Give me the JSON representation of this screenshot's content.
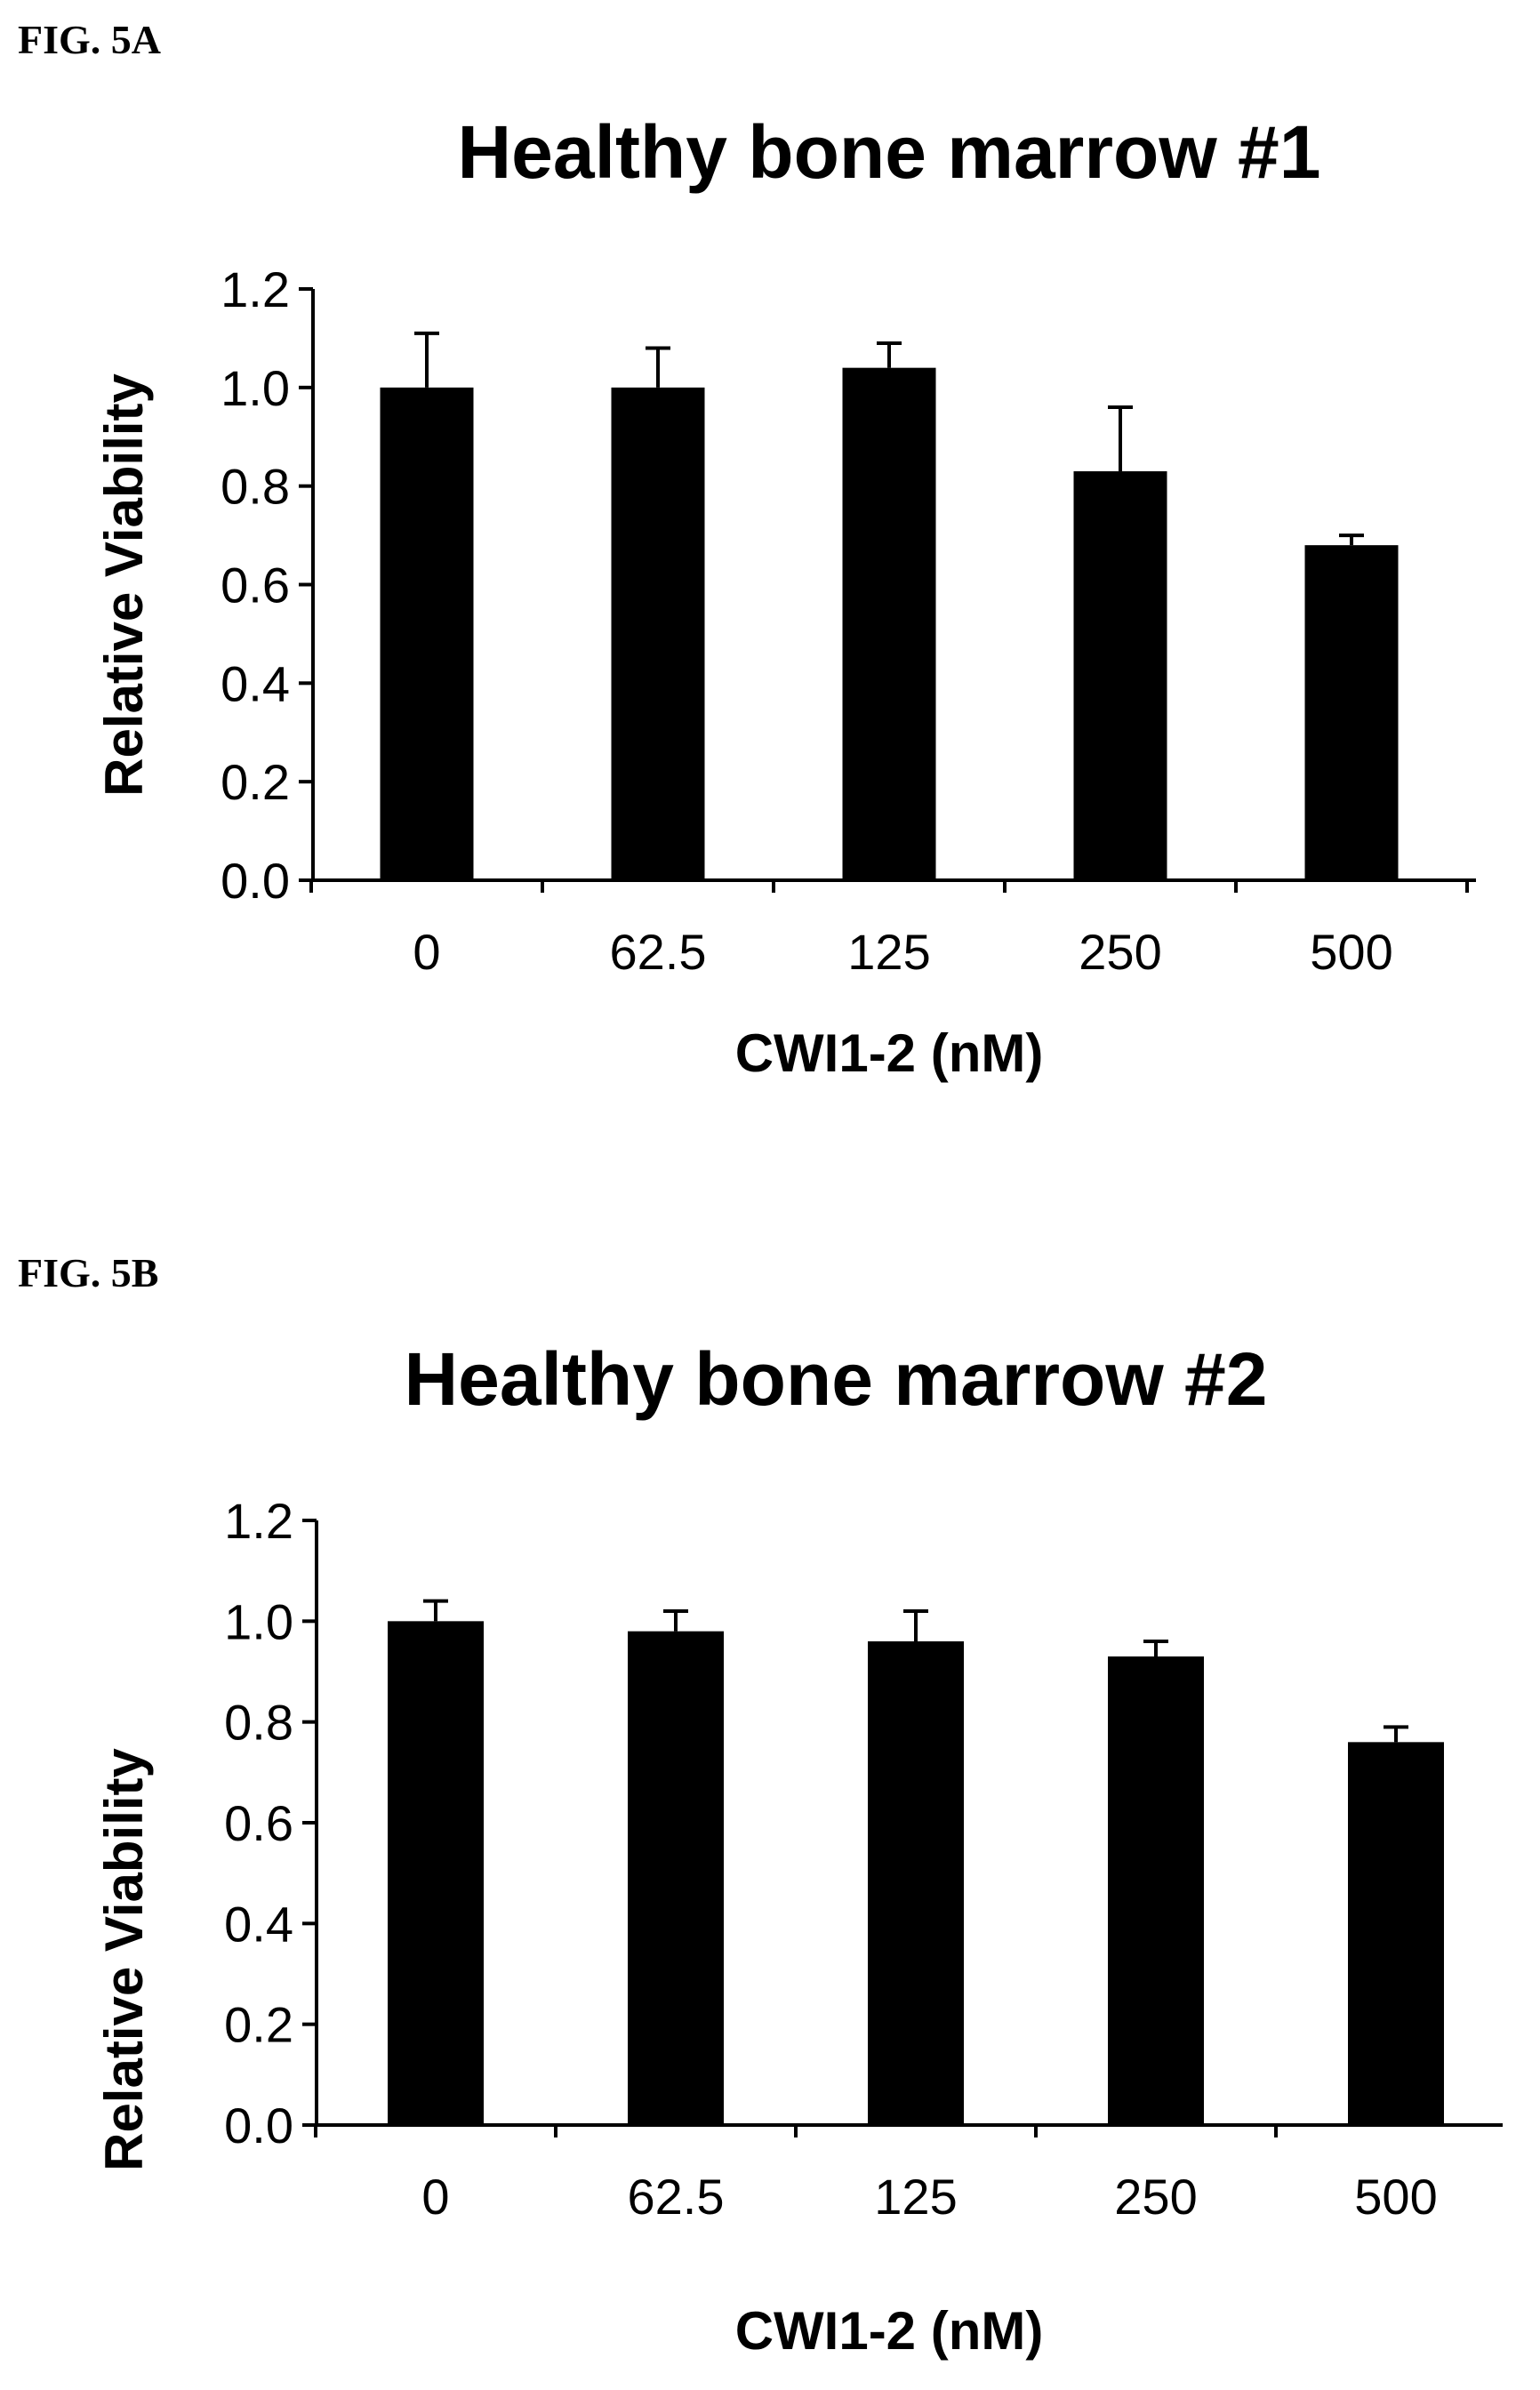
{
  "figures": [
    {
      "label": "FIG. 5A"
    },
    {
      "label": "FIG. 5B"
    }
  ],
  "colors": {
    "bar": "#000000",
    "axis": "#000000",
    "background": "#ffffff"
  },
  "chart_data": [
    {
      "type": "bar",
      "title": "Healthy bone marrow #1",
      "xlabel": "CWI1-2 (nM)",
      "ylabel": "Relative Viability",
      "categories": [
        "0",
        "62.5",
        "125",
        "250",
        "500"
      ],
      "values": [
        1.0,
        1.0,
        1.04,
        0.83,
        0.68
      ],
      "error": [
        0.11,
        0.08,
        0.05,
        0.13,
        0.02
      ],
      "ylim": [
        0,
        1.2
      ],
      "yticks": [
        "0.0",
        "0.2",
        "0.4",
        "0.6",
        "0.8",
        "1.0",
        "1.2"
      ],
      "grid": false,
      "legend": "none"
    },
    {
      "type": "bar",
      "title": "Healthy bone marrow #2",
      "xlabel": "CWI1-2 (nM)",
      "ylabel": "Relative Viability",
      "categories": [
        "0",
        "62.5",
        "125",
        "250",
        "500"
      ],
      "values": [
        1.0,
        0.98,
        0.96,
        0.93,
        0.76
      ],
      "error": [
        0.04,
        0.04,
        0.06,
        0.03,
        0.03
      ],
      "ylim": [
        0,
        1.2
      ],
      "yticks": [
        "0.0",
        "0.2",
        "0.4",
        "0.6",
        "0.8",
        "1.0",
        "1.2"
      ],
      "grid": false,
      "legend": "none"
    }
  ]
}
